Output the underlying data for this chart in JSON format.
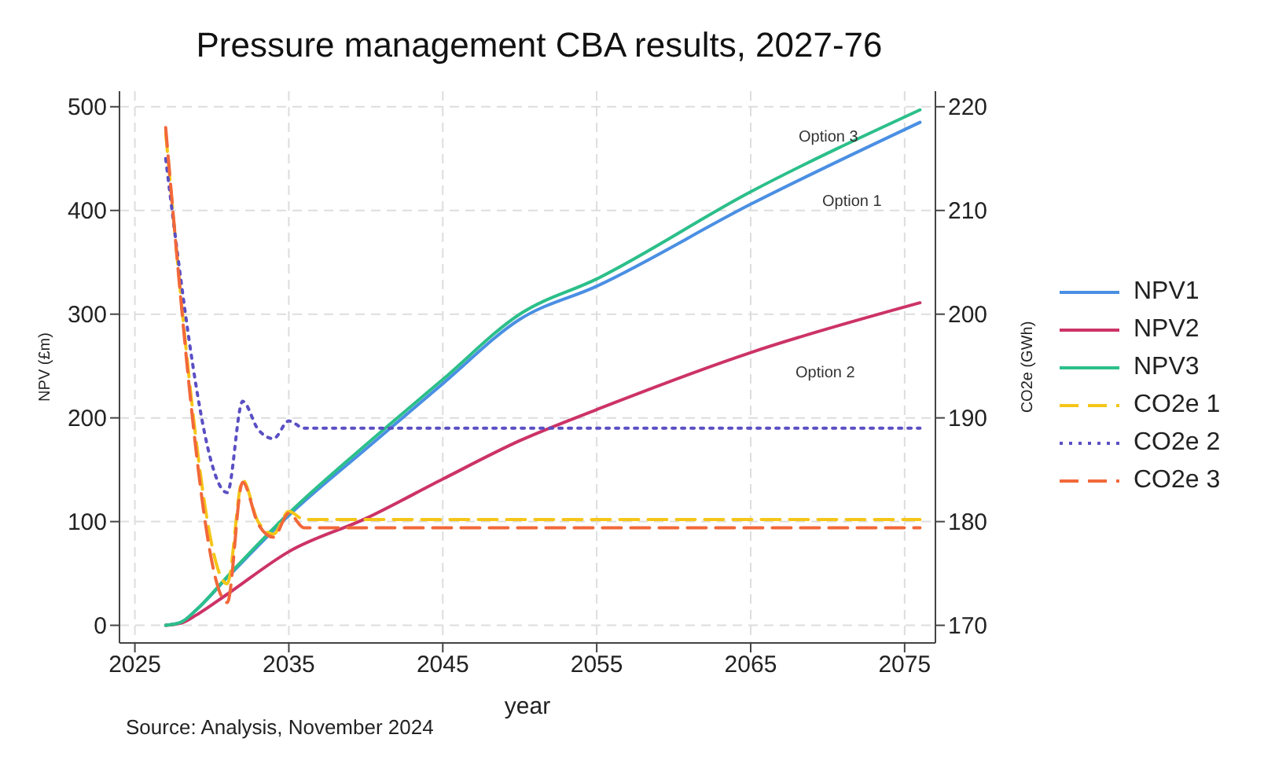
{
  "chart_data": {
    "type": "line",
    "title": "Pressure management CBA results, 2027-76",
    "xlabel": "year",
    "ylabel": "NPV (£m)",
    "y2label": "CO2e (GWh)",
    "xlim": [
      2024,
      2077
    ],
    "xticks": [
      2025,
      2035,
      2045,
      2055,
      2065,
      2075
    ],
    "ylim": [
      -17,
      515
    ],
    "yticks": [
      0,
      100,
      200,
      300,
      400,
      500
    ],
    "y2lim": [
      168.3,
      221.5
    ],
    "y2ticks": [
      170,
      180,
      190,
      200,
      210,
      220
    ],
    "grid": true,
    "legend": "right",
    "marker": "none",
    "series": [
      {
        "name": "NPV1",
        "color": "#4a8fe3",
        "line_style": "solid",
        "x": [
          2027,
          2028,
          2029,
          2031,
          2035,
          2040,
          2045,
          2050,
          2055,
          2065,
          2076
        ],
        "values": [
          0,
          3,
          15,
          46,
          106,
          170,
          233,
          295,
          327,
          406,
          485
        ]
      },
      {
        "name": "NPV2",
        "color": "#cc3366",
        "line_style": "solid",
        "x": [
          2027,
          2028,
          2029,
          2031,
          2035,
          2040,
          2045,
          2050,
          2055,
          2065,
          2076
        ],
        "values": [
          0,
          2,
          10,
          30,
          71,
          103,
          141,
          178,
          208,
          263,
          311
        ]
      },
      {
        "name": "NPV3",
        "color": "#2cbf8a",
        "line_style": "solid",
        "x": [
          2027,
          2028,
          2029,
          2031,
          2035,
          2040,
          2045,
          2050,
          2055,
          2065,
          2076
        ],
        "values": [
          0,
          3,
          15,
          47,
          108,
          174,
          237,
          300,
          334,
          418,
          497
        ]
      },
      {
        "name": "CO2e 1",
        "color": "#f5c518",
        "line_style": "dashed",
        "axis": "y2",
        "x": [
          2027,
          2031,
          2032,
          2033,
          2034,
          2035,
          2036,
          2076
        ],
        "values": [
          217.5,
          174,
          184,
          180,
          178.8,
          181,
          180.2,
          180.2
        ]
      },
      {
        "name": "CO2e 2",
        "color": "#5a4fc4",
        "line_style": "dotted",
        "axis": "y2",
        "x": [
          2027,
          2031,
          2032,
          2033,
          2034,
          2035,
          2036,
          2076
        ],
        "values": [
          215,
          182.8,
          191.6,
          188.9,
          188,
          189.7,
          189,
          189
        ]
      },
      {
        "name": "CO2e 3",
        "color": "#f2683a",
        "line_style": "dashed",
        "axis": "y2",
        "x": [
          2027,
          2031,
          2032,
          2033,
          2034,
          2035,
          2036,
          2076
        ],
        "values": [
          218,
          172.2,
          183.8,
          179.8,
          178.5,
          180.8,
          179.4,
          179.4
        ]
      }
    ],
    "annotations": [
      "Option 3",
      "Option 1",
      "Option 2",
      "Source: Analysis, November 2024"
    ]
  }
}
